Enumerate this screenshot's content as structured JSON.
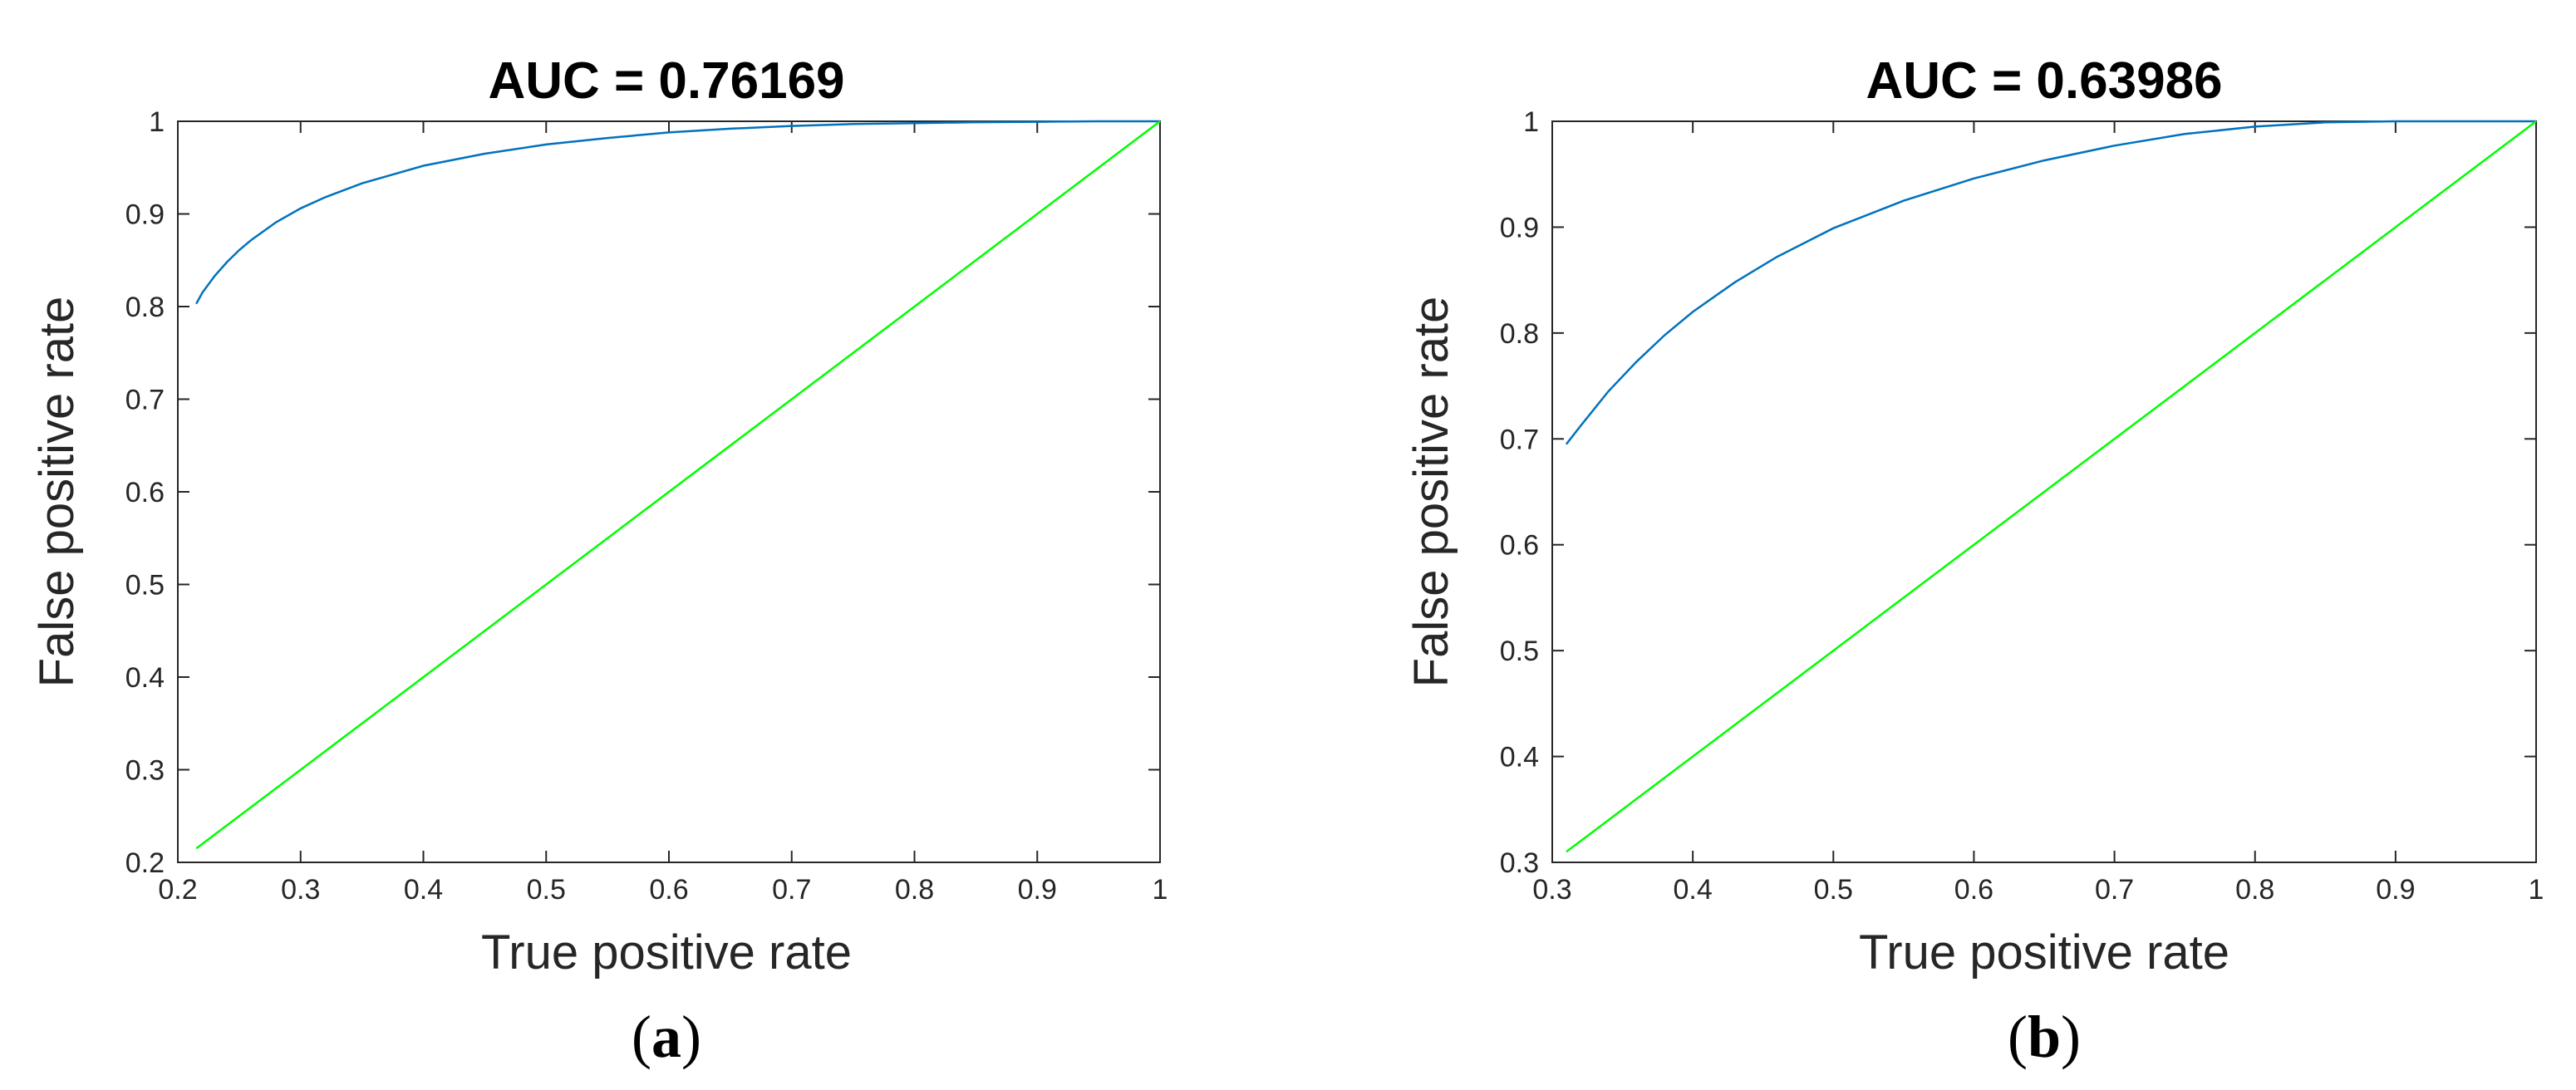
{
  "chart_data": [
    {
      "type": "line",
      "title": "AUC = 0.76169",
      "xlabel": "True positive rate",
      "ylabel": "False positive rate",
      "panel_label": [
        "(",
        "a",
        ")"
      ],
      "xlim": [
        0.2,
        1
      ],
      "ylim": [
        0.2,
        1
      ],
      "xticks": [
        "0.2",
        "0.3",
        "0.4",
        "0.5",
        "0.6",
        "0.7",
        "0.8",
        "0.9",
        "1"
      ],
      "yticks": [
        "0.2",
        "0.3",
        "0.4",
        "0.5",
        "0.6",
        "0.7",
        "0.8",
        "0.9",
        "1"
      ],
      "grid": false,
      "series": [
        {
          "color": "#0072BD",
          "x": [
            0.215,
            0.22,
            0.23,
            0.24,
            0.25,
            0.26,
            0.28,
            0.3,
            0.32,
            0.35,
            0.4,
            0.45,
            0.5,
            0.55,
            0.6,
            0.65,
            0.7,
            0.75,
            0.8,
            0.85,
            0.9,
            0.95,
            1.0
          ],
          "y": [
            0.803,
            0.815,
            0.833,
            0.848,
            0.861,
            0.872,
            0.891,
            0.906,
            0.918,
            0.933,
            0.952,
            0.965,
            0.975,
            0.982,
            0.988,
            0.992,
            0.995,
            0.997,
            0.998,
            0.999,
            0.9995,
            1.0,
            1.0
          ]
        },
        {
          "color": "#00FF00",
          "x": [
            0.215,
            1.0
          ],
          "y": [
            0.215,
            1.0
          ]
        }
      ]
    },
    {
      "type": "line",
      "title": "AUC = 0.63986",
      "xlabel": "True positive rate",
      "ylabel": "False positive rate",
      "panel_label": [
        "(",
        "b",
        ")"
      ],
      "xlim": [
        0.3,
        1
      ],
      "ylim": [
        0.3,
        1
      ],
      "xticks": [
        "0.3",
        "0.4",
        "0.5",
        "0.6",
        "0.7",
        "0.8",
        "0.9",
        "1"
      ],
      "yticks": [
        "0.3",
        "0.4",
        "0.5",
        "0.6",
        "0.7",
        "0.8",
        "0.9",
        "1"
      ],
      "grid": false,
      "series": [
        {
          "color": "#0072BD",
          "x": [
            0.31,
            0.32,
            0.34,
            0.36,
            0.38,
            0.4,
            0.43,
            0.46,
            0.5,
            0.55,
            0.6,
            0.65,
            0.7,
            0.75,
            0.8,
            0.85,
            0.9,
            0.95,
            1.0
          ],
          "y": [
            0.695,
            0.712,
            0.745,
            0.773,
            0.798,
            0.82,
            0.848,
            0.872,
            0.899,
            0.925,
            0.946,
            0.963,
            0.977,
            0.988,
            0.995,
            0.999,
            1.0,
            1.0,
            1.0
          ]
        },
        {
          "color": "#00FF00",
          "x": [
            0.31,
            1.0
          ],
          "y": [
            0.31,
            1.0
          ]
        }
      ]
    }
  ]
}
